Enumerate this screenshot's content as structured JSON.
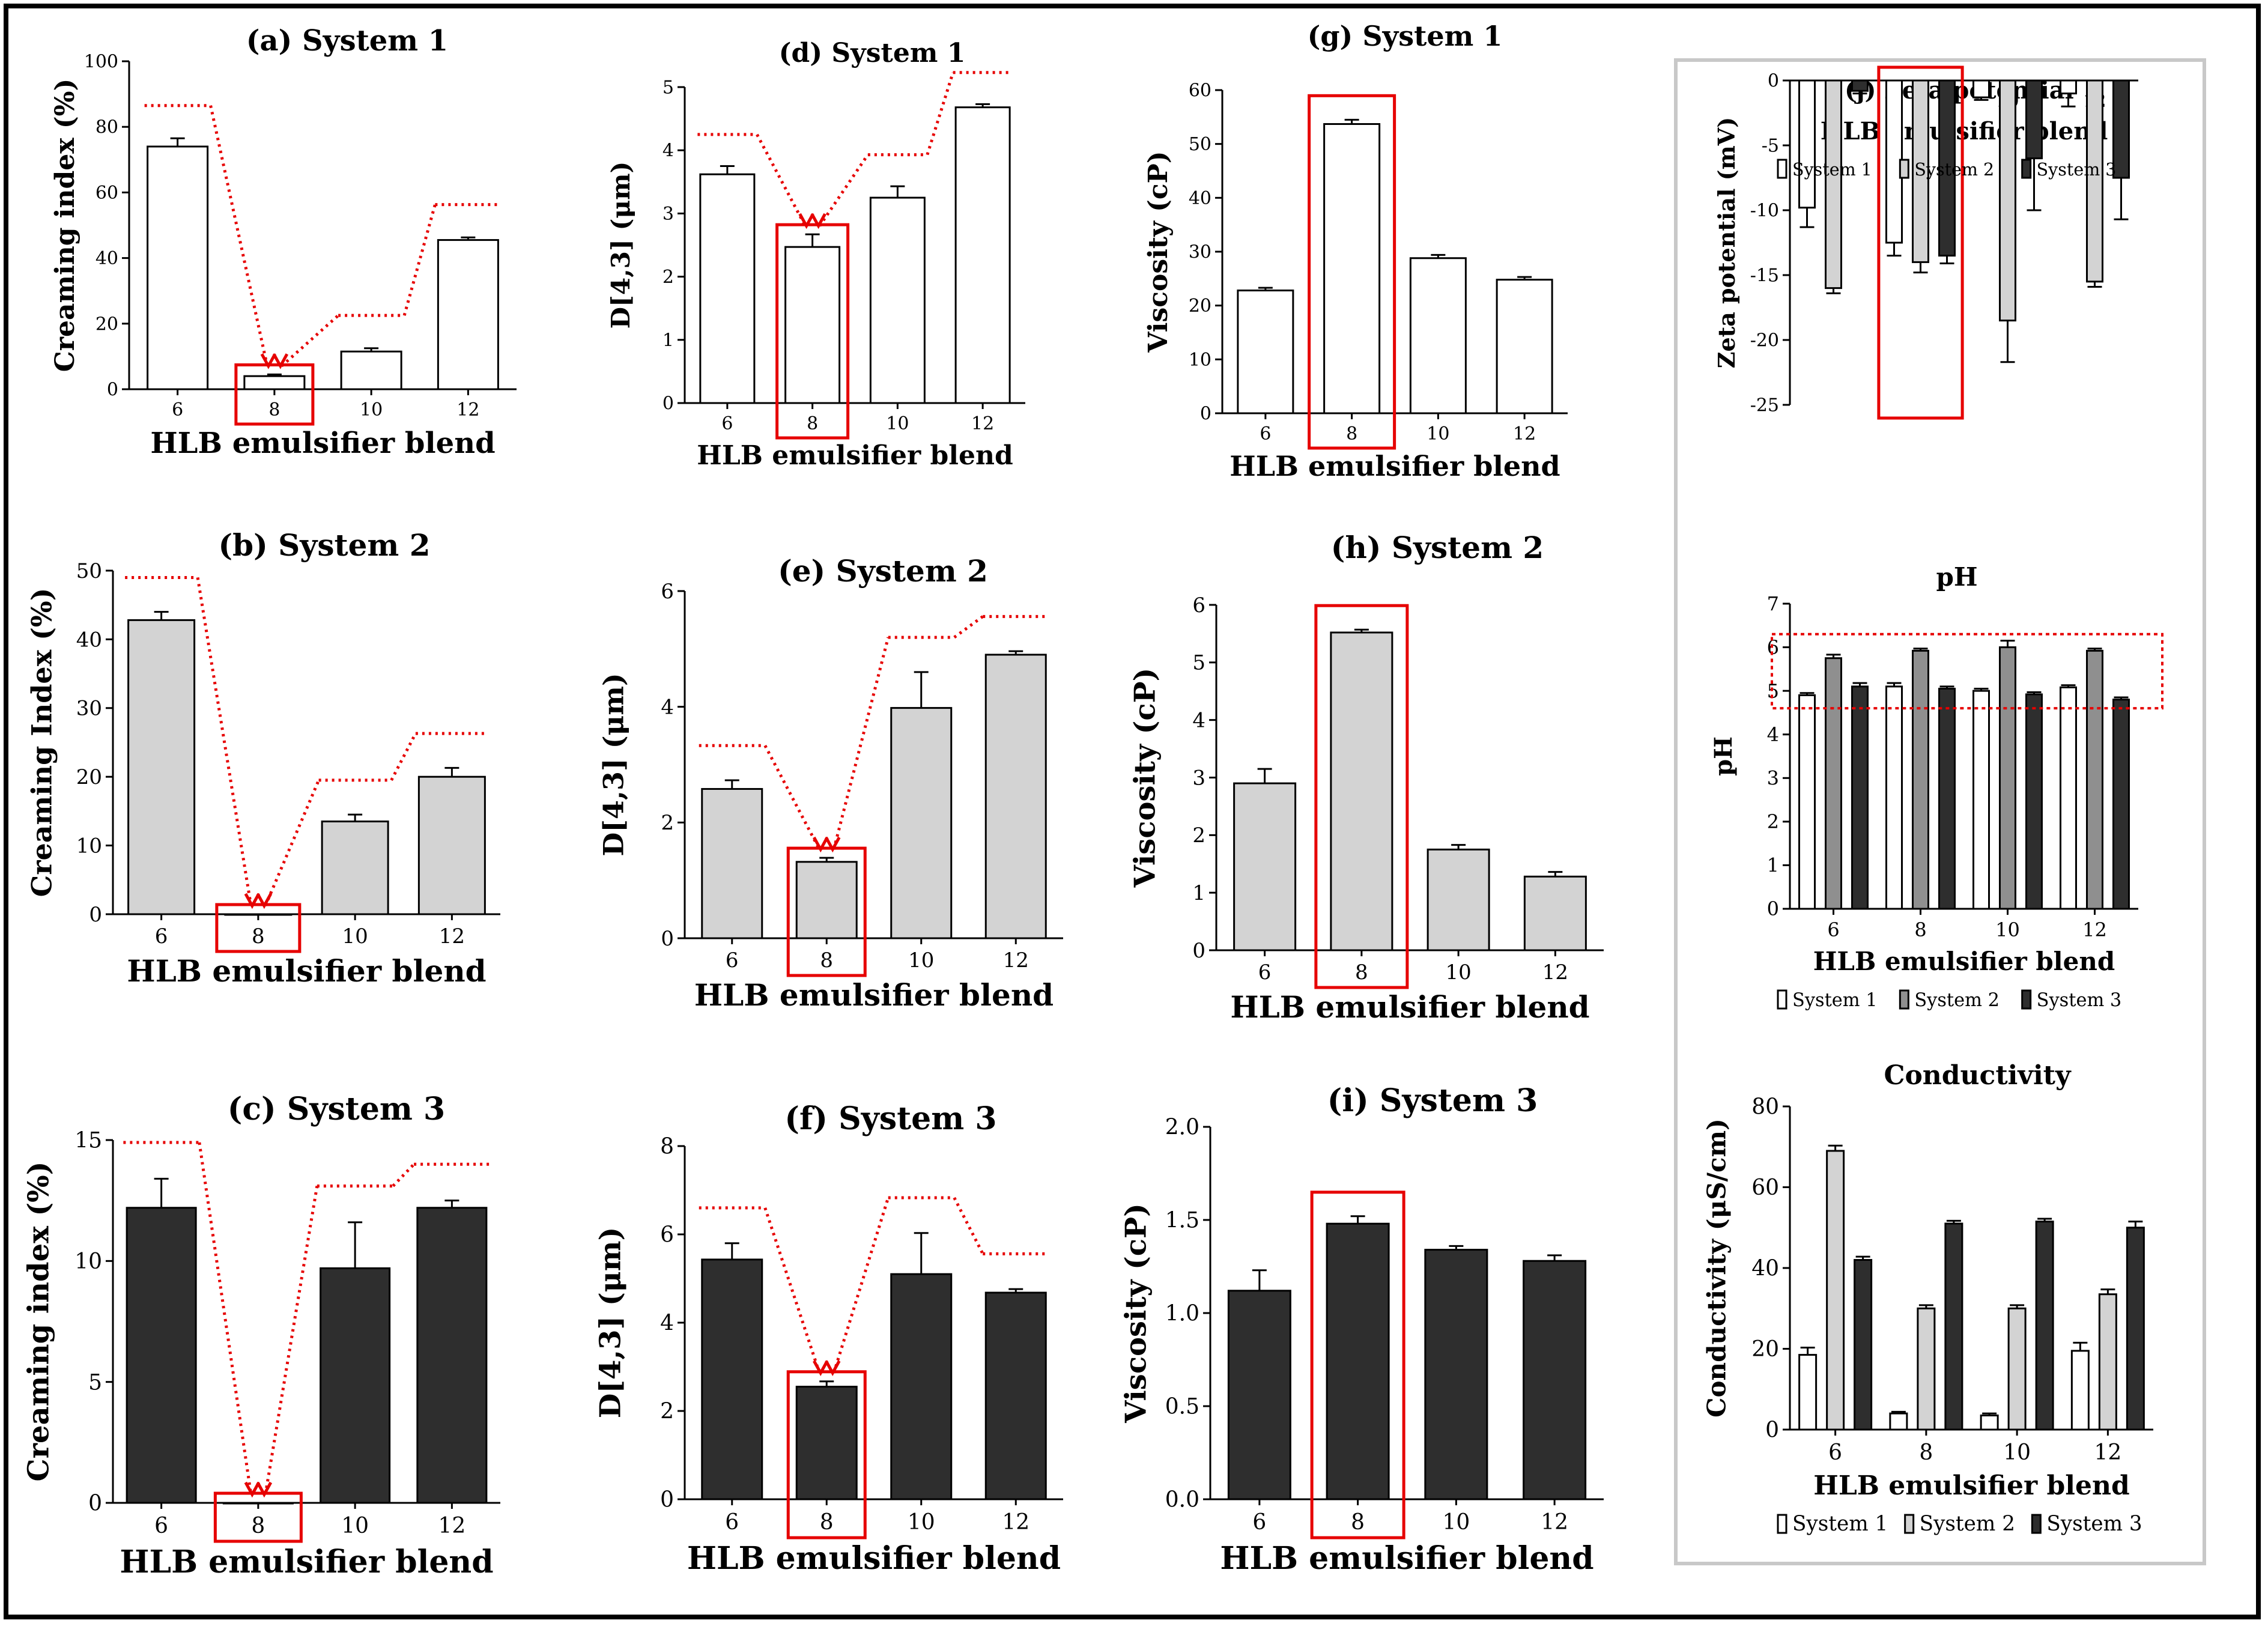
{
  "figure": {
    "colors": {
      "system1": "#ffffff",
      "system2": "#d3d3d3",
      "system3": "#2e2e2e",
      "system2_dark": "#8f8f8f",
      "highlight": "#e60000",
      "panel_border": "#c8c8c8"
    }
  },
  "chart_data": [
    {
      "id": "a",
      "type": "bar",
      "title": "(a) System 1",
      "xlabel": "HLB emulsifier blend",
      "ylabel": "Creaming index (%)",
      "categories": [
        "6",
        "8",
        "10",
        "12"
      ],
      "series": [
        {
          "name": "System 1",
          "values": [
            74,
            4,
            11.5,
            45.5
          ],
          "errors": [
            2.5,
            0.5,
            1,
            0.8
          ]
        }
      ],
      "ylim": [
        0,
        100
      ],
      "yticks": [
        "0",
        "20",
        "40",
        "60",
        "80",
        "100"
      ],
      "highlight": "8",
      "trend_arrows": true
    },
    {
      "id": "b",
      "type": "bar",
      "title": "(b) System 2",
      "xlabel": "HLB emulsifier blend",
      "ylabel": "Creaming Index (%)",
      "categories": [
        "6",
        "8",
        "10",
        "12"
      ],
      "series": [
        {
          "name": "System 2",
          "values": [
            42.8,
            0,
            13.5,
            20
          ],
          "errors": [
            1.2,
            0,
            1,
            1.3
          ]
        }
      ],
      "ylim": [
        0,
        50
      ],
      "yticks": [
        "0",
        "10",
        "20",
        "30",
        "40",
        "50"
      ],
      "highlight": "8",
      "trend_arrows": true
    },
    {
      "id": "c",
      "type": "bar",
      "title": "(c) System 3",
      "xlabel": "HLB emulsifier blend",
      "ylabel": "Creaming index (%)",
      "categories": [
        "6",
        "8",
        "10",
        "12"
      ],
      "series": [
        {
          "name": "System 3",
          "values": [
            12.2,
            0,
            9.7,
            12.2
          ],
          "errors": [
            1.2,
            0,
            1.9,
            0.3
          ]
        }
      ],
      "ylim": [
        0,
        15
      ],
      "yticks": [
        "0",
        "5",
        "10",
        "15"
      ],
      "highlight": "8",
      "trend_arrows": true
    },
    {
      "id": "d",
      "type": "bar",
      "title": "(d) System 1",
      "xlabel": "HLB emulsifier blend",
      "ylabel": "D[4,3] (μm)",
      "categories": [
        "6",
        "8",
        "10",
        "12"
      ],
      "series": [
        {
          "name": "System 1",
          "values": [
            3.62,
            2.47,
            3.25,
            4.68
          ],
          "errors": [
            0.13,
            0.2,
            0.18,
            0.05
          ]
        }
      ],
      "ylim": [
        0,
        5
      ],
      "yticks": [
        "0",
        "1",
        "2",
        "3",
        "4",
        "5"
      ],
      "highlight": "8",
      "trend_arrows": true
    },
    {
      "id": "e",
      "type": "bar",
      "title": "(e) System 2",
      "xlabel": "HLB emulsifier blend",
      "ylabel": "D[4,3] (μm)",
      "categories": [
        "6",
        "8",
        "10",
        "12"
      ],
      "series": [
        {
          "name": "System 2",
          "values": [
            2.58,
            1.32,
            3.98,
            4.9
          ],
          "errors": [
            0.15,
            0.07,
            0.62,
            0.06
          ]
        }
      ],
      "ylim": [
        0,
        6
      ],
      "yticks": [
        "0",
        "2",
        "4",
        "6"
      ],
      "highlight": "8",
      "trend_arrows": true
    },
    {
      "id": "f",
      "type": "bar",
      "title": "(f) System 3",
      "xlabel": "HLB emulsifier blend",
      "ylabel": "D[4,3] (μm)",
      "categories": [
        "6",
        "8",
        "10",
        "12"
      ],
      "series": [
        {
          "name": "System 3",
          "values": [
            5.43,
            2.55,
            5.1,
            4.68
          ],
          "errors": [
            0.37,
            0.12,
            0.93,
            0.08
          ]
        }
      ],
      "ylim": [
        0,
        8
      ],
      "yticks": [
        "0",
        "2",
        "4",
        "6",
        "8"
      ],
      "highlight": "8",
      "trend_arrows": true
    },
    {
      "id": "g",
      "type": "bar",
      "title": "(g) System 1",
      "xlabel": "HLB emulsifier blend",
      "ylabel": "Viscosity (cP)",
      "categories": [
        "6",
        "8",
        "10",
        "12"
      ],
      "series": [
        {
          "name": "System 1",
          "values": [
            22.8,
            53.7,
            28.8,
            24.8
          ],
          "errors": [
            0.5,
            0.8,
            0.6,
            0.5
          ]
        }
      ],
      "ylim": [
        0,
        60
      ],
      "yticks": [
        "0",
        "10",
        "20",
        "30",
        "40",
        "50",
        "60"
      ],
      "highlight": "8"
    },
    {
      "id": "h",
      "type": "bar",
      "title": "(h) System 2",
      "xlabel": "HLB emulsifier blend",
      "ylabel": "Viscosity (cP)",
      "categories": [
        "6",
        "8",
        "10",
        "12"
      ],
      "series": [
        {
          "name": "System 2",
          "values": [
            2.9,
            5.52,
            1.75,
            1.28
          ],
          "errors": [
            0.25,
            0.05,
            0.08,
            0.08
          ]
        }
      ],
      "ylim": [
        0,
        6
      ],
      "yticks": [
        "0",
        "1",
        "2",
        "3",
        "4",
        "5",
        "6"
      ],
      "highlight": "8"
    },
    {
      "id": "i",
      "type": "bar",
      "title": "(i) System 3",
      "xlabel": "HLB emulsifier blend",
      "ylabel": "Viscosity (cP)",
      "categories": [
        "6",
        "8",
        "10",
        "12"
      ],
      "series": [
        {
          "name": "System 3",
          "values": [
            1.12,
            1.48,
            1.34,
            1.28
          ],
          "errors": [
            0.11,
            0.04,
            0.02,
            0.03
          ]
        }
      ],
      "ylim": [
        0,
        2
      ],
      "yticks": [
        "0.0",
        "0.5",
        "1.0",
        "1.5",
        "2.0"
      ],
      "highlight": "8"
    },
    {
      "id": "j",
      "type": "bar",
      "title": "(j) Zeta  potential",
      "xlabel": "HLB emulsifier blend",
      "ylabel": "Zeta potential (mV)",
      "categories": [
        "6",
        "8",
        "10",
        "12"
      ],
      "series": [
        {
          "name": "System 1",
          "values": [
            -9.8,
            -12.5,
            -1.3,
            -1.0
          ],
          "errors": [
            1.5,
            1.0,
            0.2,
            1.0
          ]
        },
        {
          "name": "System 2",
          "values": [
            -16,
            -14,
            -18.5,
            -15.5
          ],
          "errors": [
            0.4,
            0.8,
            3.2,
            0.4
          ]
        },
        {
          "name": "System 3",
          "values": [
            -0.8,
            -13.5,
            -6,
            -7.5
          ],
          "errors": [
            0.2,
            0.6,
            4,
            3.2
          ]
        }
      ],
      "ylim": [
        -25,
        0
      ],
      "yticks": [
        "0",
        "-5",
        "-10",
        "-15",
        "-20",
        "-25"
      ],
      "highlight": "8",
      "legend": [
        "System 1",
        "System 2",
        "System 3"
      ]
    },
    {
      "id": "k",
      "type": "bar",
      "title": "pH",
      "xlabel": "HLB emulsifier blend",
      "ylabel": "pH",
      "categories": [
        "6",
        "8",
        "10",
        "12"
      ],
      "series": [
        {
          "name": "System 1",
          "values": [
            4.9,
            5.1,
            5.0,
            5.08
          ],
          "errors": [
            0.05,
            0.08,
            0.05,
            0.05
          ]
        },
        {
          "name": "System 2",
          "values": [
            5.75,
            5.92,
            6.0,
            5.92
          ],
          "errors": [
            0.08,
            0.05,
            0.15,
            0.05
          ]
        },
        {
          "name": "System 3",
          "values": [
            5.1,
            5.05,
            4.92,
            4.8
          ],
          "errors": [
            0.08,
            0.05,
            0.05,
            0.05
          ]
        }
      ],
      "ylim": [
        0,
        7
      ],
      "yticks": [
        "0",
        "1",
        "2",
        "3",
        "4",
        "5",
        "6",
        "7"
      ],
      "highlight_range": [
        4.6,
        6.3
      ],
      "legend": [
        "System 1",
        "System 2",
        "System 3"
      ]
    },
    {
      "id": "l",
      "type": "bar",
      "title": "Conductivity",
      "xlabel": "HLB emulsifier blend",
      "ylabel": "Conductivity (μS/cm)",
      "categories": [
        "6",
        "8",
        "10",
        "12"
      ],
      "series": [
        {
          "name": "System 1",
          "values": [
            18.5,
            4,
            3.5,
            19.5
          ],
          "errors": [
            1.8,
            0.4,
            0.5,
            2
          ]
        },
        {
          "name": "System 2",
          "values": [
            69,
            30,
            30,
            33.5
          ],
          "errors": [
            1.3,
            0.8,
            0.8,
            1.2
          ]
        },
        {
          "name": "System 3",
          "values": [
            42,
            51,
            51.5,
            50
          ],
          "errors": [
            0.8,
            0.7,
            0.7,
            1.5
          ]
        }
      ],
      "ylim": [
        0,
        80
      ],
      "yticks": [
        "0",
        "20",
        "40",
        "60",
        "80"
      ],
      "legend": [
        "System 1",
        "System 2",
        "System 3"
      ]
    }
  ]
}
